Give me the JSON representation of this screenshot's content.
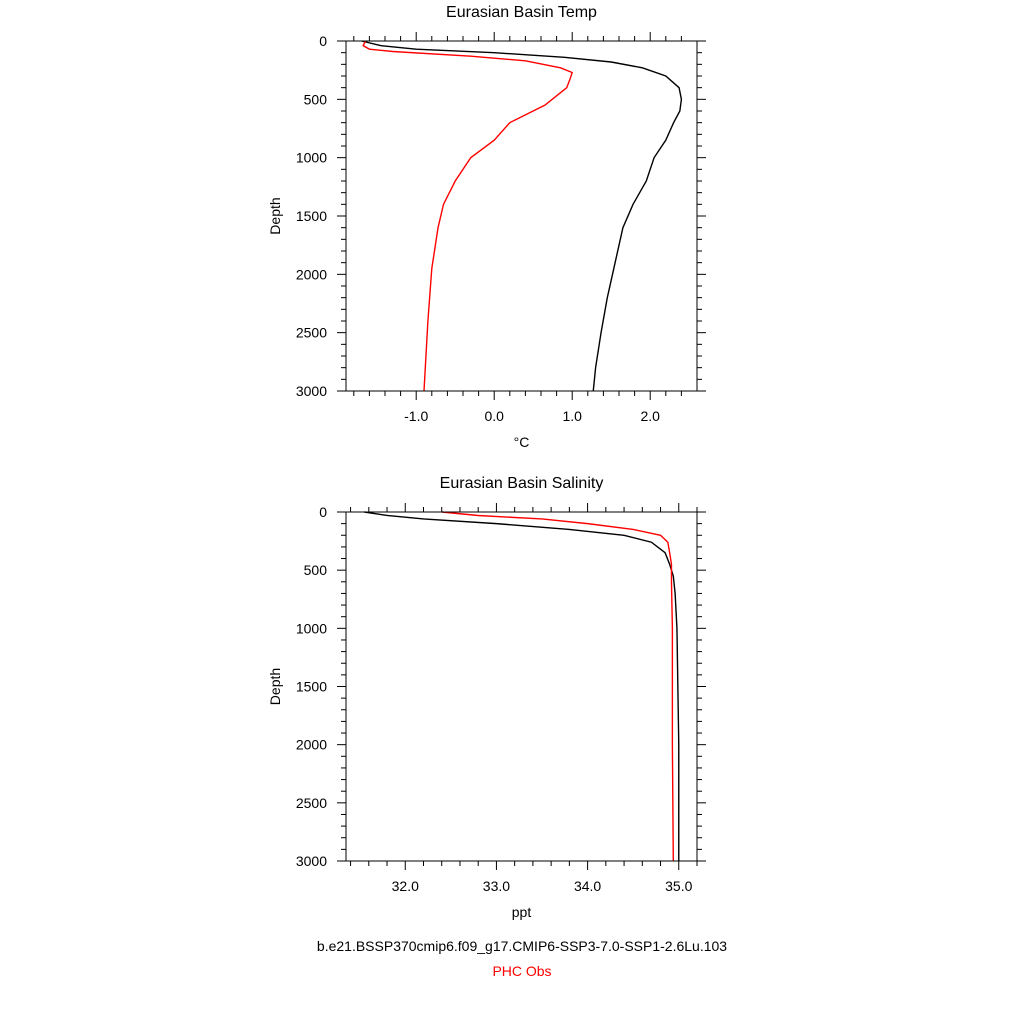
{
  "chart_data": [
    {
      "type": "line",
      "title": "Eurasian Basin Temp",
      "xlabel": "°C",
      "ylabel": "Depth",
      "xlim": [
        -1.9,
        2.6
      ],
      "ylim": [
        3000,
        0
      ],
      "xticks": [
        {
          "v": -1.0,
          "label": "-1.0"
        },
        {
          "v": 0.0,
          "label": "0.0"
        },
        {
          "v": 1.0,
          "label": "1.0"
        },
        {
          "v": 2.0,
          "label": "2.0"
        }
      ],
      "xminor": [
        -1.8,
        -1.6,
        -1.4,
        -1.2,
        -0.8,
        -0.6,
        -0.4,
        -0.2,
        0.2,
        0.4,
        0.6,
        0.8,
        1.2,
        1.4,
        1.6,
        1.8,
        2.2,
        2.4
      ],
      "yticks": [
        {
          "v": 0,
          "label": "0"
        },
        {
          "v": 500,
          "label": "500"
        },
        {
          "v": 1000,
          "label": "1000"
        },
        {
          "v": 1500,
          "label": "1500"
        },
        {
          "v": 2000,
          "label": "2000"
        },
        {
          "v": 2500,
          "label": "2500"
        },
        {
          "v": 3000,
          "label": "3000"
        }
      ],
      "yminor": [
        100,
        200,
        300,
        400,
        600,
        700,
        800,
        900,
        1100,
        1200,
        1300,
        1400,
        1600,
        1700,
        1800,
        1900,
        2100,
        2200,
        2300,
        2400,
        2600,
        2700,
        2800,
        2900
      ],
      "series": [
        {
          "name": "b.e21.BSSP370cmip6.f09_g17.CMIP6-SSP3-7.0-SSP1-2.6Lu.103",
          "color": "#000000",
          "points": [
            [
              -1.7,
              0
            ],
            [
              -1.45,
              40
            ],
            [
              -1.0,
              70
            ],
            [
              0.0,
              100
            ],
            [
              0.9,
              140
            ],
            [
              1.5,
              180
            ],
            [
              1.9,
              230
            ],
            [
              2.2,
              300
            ],
            [
              2.37,
              400
            ],
            [
              2.4,
              500
            ],
            [
              2.38,
              600
            ],
            [
              2.3,
              700
            ],
            [
              2.2,
              850
            ],
            [
              2.05,
              1000
            ],
            [
              1.95,
              1200
            ],
            [
              1.78,
              1400
            ],
            [
              1.65,
              1600
            ],
            [
              1.55,
              1900
            ],
            [
              1.45,
              2200
            ],
            [
              1.37,
              2500
            ],
            [
              1.3,
              2800
            ],
            [
              1.27,
              3000
            ]
          ]
        },
        {
          "name": "PHC Obs",
          "color": "#ff0000",
          "points": [
            [
              -1.65,
              0
            ],
            [
              -1.68,
              40
            ],
            [
              -1.6,
              70
            ],
            [
              -1.3,
              90
            ],
            [
              -0.3,
              130
            ],
            [
              0.4,
              170
            ],
            [
              0.85,
              230
            ],
            [
              1.0,
              270
            ],
            [
              0.97,
              330
            ],
            [
              0.93,
              400
            ],
            [
              0.65,
              550
            ],
            [
              0.2,
              700
            ],
            [
              0.0,
              850
            ],
            [
              -0.3,
              1000
            ],
            [
              -0.5,
              1200
            ],
            [
              -0.65,
              1400
            ],
            [
              -0.72,
              1600
            ],
            [
              -0.8,
              1950
            ],
            [
              -0.85,
              2400
            ],
            [
              -0.9,
              3000
            ]
          ]
        }
      ]
    },
    {
      "type": "line",
      "title": "Eurasian Basin Salinity",
      "xlabel": "ppt",
      "ylabel": "Depth",
      "xlim": [
        31.35,
        35.2
      ],
      "ylim": [
        3000,
        0
      ],
      "xticks": [
        {
          "v": 32.0,
          "label": "32.0"
        },
        {
          "v": 33.0,
          "label": "33.0"
        },
        {
          "v": 34.0,
          "label": "34.0"
        },
        {
          "v": 35.0,
          "label": "35.0"
        }
      ],
      "xminor": [
        31.4,
        31.6,
        31.8,
        32.2,
        32.4,
        32.6,
        32.8,
        33.2,
        33.4,
        33.6,
        33.8,
        34.2,
        34.4,
        34.6,
        34.8,
        35.2
      ],
      "yticks": [
        {
          "v": 0,
          "label": "0"
        },
        {
          "v": 500,
          "label": "500"
        },
        {
          "v": 1000,
          "label": "1000"
        },
        {
          "v": 1500,
          "label": "1500"
        },
        {
          "v": 2000,
          "label": "2000"
        },
        {
          "v": 2500,
          "label": "2500"
        },
        {
          "v": 3000,
          "label": "3000"
        }
      ],
      "yminor": [
        100,
        200,
        300,
        400,
        600,
        700,
        800,
        900,
        1100,
        1200,
        1300,
        1400,
        1600,
        1700,
        1800,
        1900,
        2100,
        2200,
        2300,
        2400,
        2600,
        2700,
        2800,
        2900
      ],
      "series": [
        {
          "name": "b.e21.BSSP370cmip6.f09_g17.CMIP6-SSP3-7.0-SSP1-2.6Lu.103",
          "color": "#000000",
          "points": [
            [
              31.55,
              0
            ],
            [
              31.8,
              30
            ],
            [
              32.2,
              60
            ],
            [
              33.0,
              100
            ],
            [
              33.8,
              150
            ],
            [
              34.4,
              200
            ],
            [
              34.7,
              260
            ],
            [
              34.85,
              350
            ],
            [
              34.9,
              450
            ],
            [
              34.94,
              550
            ],
            [
              34.96,
              700
            ],
            [
              34.98,
              1000
            ],
            [
              34.99,
              1500
            ],
            [
              35.0,
              2000
            ],
            [
              35.0,
              3000
            ]
          ]
        },
        {
          "name": "PHC Obs",
          "color": "#ff0000",
          "points": [
            [
              32.4,
              0
            ],
            [
              32.8,
              30
            ],
            [
              33.5,
              60
            ],
            [
              34.0,
              100
            ],
            [
              34.5,
              150
            ],
            [
              34.8,
              200
            ],
            [
              34.88,
              260
            ],
            [
              34.9,
              350
            ],
            [
              34.92,
              450
            ],
            [
              34.92,
              600
            ],
            [
              34.93,
              1000
            ],
            [
              34.93,
              2000
            ],
            [
              34.94,
              3000
            ]
          ]
        }
      ]
    }
  ],
  "legend": {
    "model_label": "b.e21.BSSP370cmip6.f09_g17.CMIP6-SSP3-7.0-SSP1-2.6Lu.103",
    "obs_label": "PHC Obs"
  }
}
